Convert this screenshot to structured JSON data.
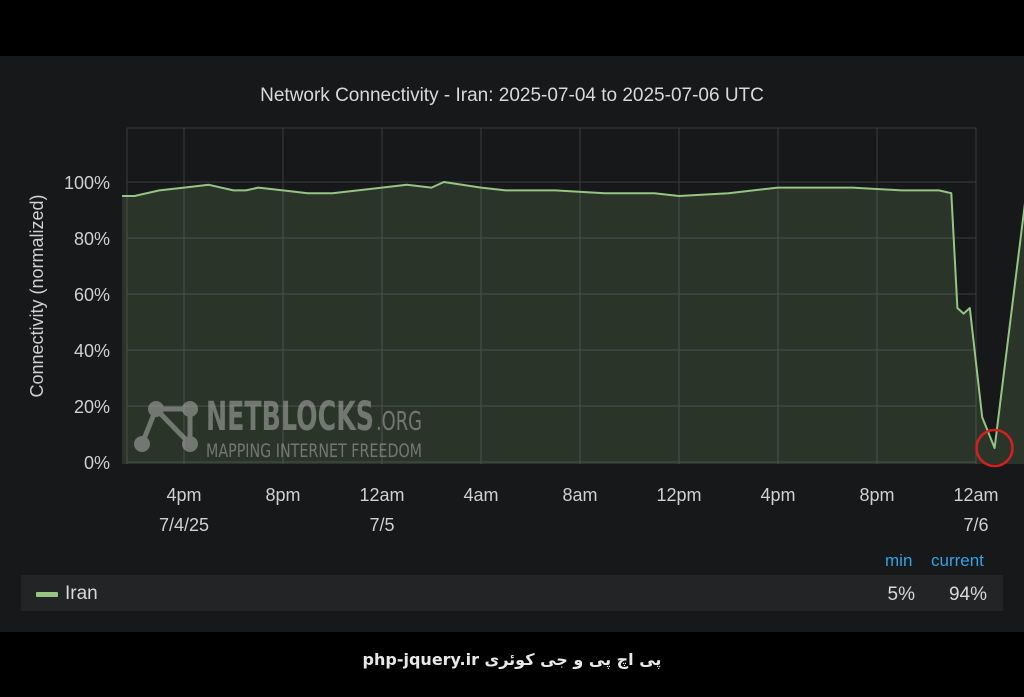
{
  "chart_data": {
    "type": "area",
    "title": "Network Connectivity - Iran: 2025-07-04 to 2025-07-06 UTC",
    "ylabel": "Connectivity (normalized)",
    "xlabel": "",
    "ylim": [
      0,
      100
    ],
    "yticks": [
      "0%",
      "20%",
      "40%",
      "60%",
      "80%",
      "100%"
    ],
    "xticks": [
      {
        "label": "4pm",
        "sublabel": "7/4/25"
      },
      {
        "label": "8pm",
        "sublabel": ""
      },
      {
        "label": "12am",
        "sublabel": "7/5"
      },
      {
        "label": "4am",
        "sublabel": ""
      },
      {
        "label": "8am",
        "sublabel": ""
      },
      {
        "label": "12pm",
        "sublabel": ""
      },
      {
        "label": "4pm",
        "sublabel": ""
      },
      {
        "label": "8pm",
        "sublabel": ""
      },
      {
        "label": "12am",
        "sublabel": "7/6"
      }
    ],
    "grid": true,
    "series": [
      {
        "name": "Iran",
        "color": "#96c483",
        "x": [
          "2025-07-04 13:30",
          "2025-07-04 14:00",
          "2025-07-04 15:00",
          "2025-07-04 16:00",
          "2025-07-04 17:00",
          "2025-07-04 18:00",
          "2025-07-04 18:30",
          "2025-07-04 19:00",
          "2025-07-04 20:00",
          "2025-07-04 21:00",
          "2025-07-04 22:00",
          "2025-07-05 00:00",
          "2025-07-05 01:00",
          "2025-07-05 02:00",
          "2025-07-05 02:30",
          "2025-07-05 04:00",
          "2025-07-05 05:00",
          "2025-07-05 07:00",
          "2025-07-05 09:00",
          "2025-07-05 11:00",
          "2025-07-05 12:00",
          "2025-07-05 14:00",
          "2025-07-05 16:00",
          "2025-07-05 19:00",
          "2025-07-05 21:00",
          "2025-07-05 22:30",
          "2025-07-05 23:00",
          "2025-07-05 23:15",
          "2025-07-05 23:30",
          "2025-07-05 23:45",
          "2025-07-06 00:15",
          "2025-07-06 00:45",
          "2025-07-06 02:00"
        ],
        "values": [
          95,
          95,
          97,
          98,
          99,
          97,
          97,
          98,
          97,
          96,
          96,
          98,
          99,
          98,
          100,
          98,
          97,
          97,
          96,
          96,
          95,
          96,
          98,
          98,
          97,
          97,
          96,
          55,
          53,
          55,
          16,
          5,
          94
        ]
      }
    ],
    "annotations": [
      {
        "type": "circle",
        "x": "2025-07-06 00:45",
        "y": 5,
        "color": "#d62020"
      }
    ]
  },
  "watermark": {
    "title": "NETBLOCKS",
    "suffix": ".ORG",
    "tagline": "MAPPING INTERNET FREEDOM"
  },
  "legend": {
    "min_header": "min",
    "current_header": "current",
    "rows": [
      {
        "name": "Iran",
        "min": "5%",
        "current": "94%"
      }
    ]
  },
  "footer": {
    "site": "php-jquery.ir",
    "text": "پی اچ پی و جی کوئری"
  }
}
